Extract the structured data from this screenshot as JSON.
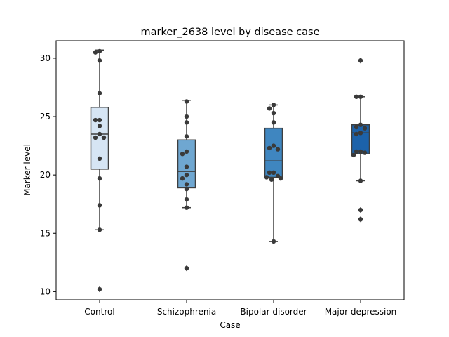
{
  "chart_data": {
    "type": "box",
    "title": "marker_2638 level by disease case",
    "xlabel": "Case",
    "ylabel": "Marker level",
    "ylim": [
      9.3,
      31.5
    ],
    "yticks": [
      10,
      15,
      20,
      25,
      30
    ],
    "yticklabels": [
      "10",
      "15",
      "20",
      "25",
      "30"
    ],
    "grid": false,
    "legend": "none",
    "categories": [
      "Control",
      "Schizophrenia",
      "Bipolar disorder",
      "Major depression"
    ],
    "box_colors": [
      "#d6e5f4",
      "#6fa7d1",
      "#3f86c0",
      "#1c62aa"
    ],
    "point_color": "#3a3a3a",
    "boxes": [
      {
        "q1": 20.5,
        "median": 23.5,
        "q3": 25.8,
        "whisker_low": 15.3,
        "whisker_high": 30.7,
        "outliers": [
          10.2
        ],
        "points": [
          30.6,
          30.5,
          29.8,
          27.0,
          24.7,
          24.7,
          24.2,
          23.5,
          23.2,
          23.2,
          21.4,
          19.7,
          17.4,
          15.3,
          10.2
        ]
      },
      {
        "q1": 18.9,
        "median": 20.3,
        "q3": 23.0,
        "whisker_low": 17.2,
        "whisker_high": 26.4,
        "outliers": [
          12.0
        ],
        "points": [
          26.3,
          25.0,
          24.5,
          23.3,
          22.0,
          21.8,
          20.7,
          20.0,
          19.7,
          19.2,
          18.8,
          17.9,
          17.2,
          12.0
        ]
      },
      {
        "q1": 19.8,
        "median": 21.2,
        "q3": 24.0,
        "whisker_low": 14.3,
        "whisker_high": 26.0,
        "outliers": [],
        "points": [
          26.0,
          25.7,
          25.3,
          24.5,
          22.5,
          22.3,
          22.2,
          20.2,
          20.2,
          19.9,
          19.8,
          19.7,
          19.6,
          14.3
        ]
      },
      {
        "q1": 21.8,
        "median": 23.6,
        "q3": 24.3,
        "whisker_low": 19.5,
        "whisker_high": 26.7,
        "outliers": [
          29.8,
          17.0,
          16.2
        ],
        "points": [
          29.8,
          26.7,
          26.7,
          24.3,
          24.1,
          24.0,
          23.6,
          23.5,
          22.0,
          22.0,
          21.9,
          21.7,
          19.5,
          17.0,
          16.2
        ]
      }
    ]
  }
}
